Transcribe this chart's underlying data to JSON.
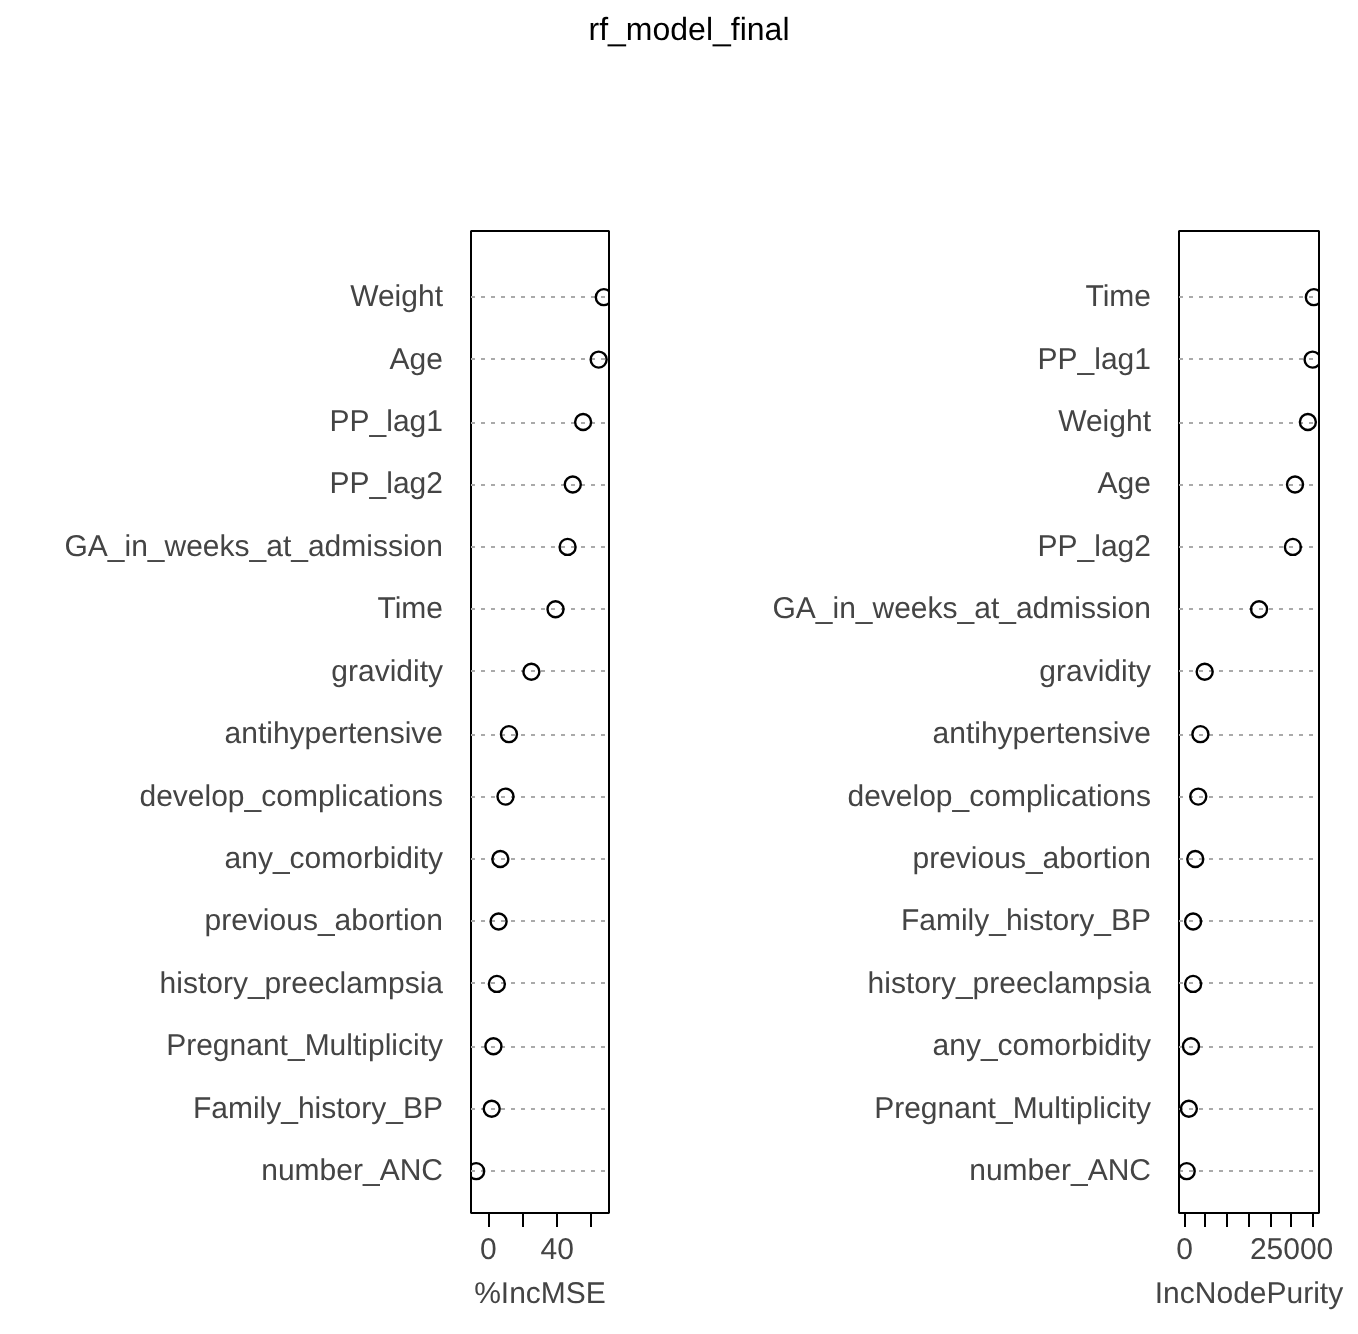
{
  "chart_data": [
    {
      "type": "scatter",
      "title": "rf_model_final",
      "orientation": "horizontal",
      "xlabel": "%IncMSE",
      "categories": [
        "Weight",
        "Age",
        "PP_lag1",
        "PP_lag2",
        "GA_in_weeks_at_admission",
        "Time",
        "gravidity",
        "antihypertensive",
        "develop_complications",
        "any_comorbidity",
        "previous_abortion",
        "history_preeclampsia",
        "Pregnant_Multiplicity",
        "Family_history_BP",
        "number_ANC"
      ],
      "values": [
        67,
        64,
        55,
        49,
        46,
        39,
        25,
        12,
        10,
        7,
        6,
        5,
        3,
        2,
        -7
      ],
      "color": "#000000",
      "marker": "circle",
      "grid": "y",
      "xlim": [
        -10,
        70
      ],
      "xticks": [
        0,
        {
          "value": 20,
          "label": null
        },
        40,
        {
          "value": 60,
          "label": null
        }
      ]
    },
    {
      "type": "scatter",
      "orientation": "horizontal",
      "xlabel": "IncNodePurity",
      "categories": [
        "Time",
        "PP_lag1",
        "Weight",
        "Age",
        "PP_lag2",
        "GA_in_weeks_at_admission",
        "gravidity",
        "antihypertensive",
        "develop_complications",
        "previous_abortion",
        "Family_history_BP",
        "history_preeclampsia",
        "any_comorbidity",
        "Pregnant_Multiplicity",
        "number_ANC"
      ],
      "values": [
        30200,
        29900,
        28800,
        25800,
        25300,
        17400,
        4700,
        3700,
        3200,
        2500,
        2000,
        2000,
        1500,
        1000,
        500
      ],
      "color": "#000000",
      "marker": "circle",
      "grid": "y",
      "xlim": [
        -1300,
        31400
      ],
      "xticks": [
        0,
        {
          "value": 5000,
          "label": null
        },
        {
          "value": 10000,
          "label": null
        },
        {
          "value": 15000,
          "label": null
        },
        {
          "value": 20000,
          "label": null
        },
        25000,
        {
          "value": 30000,
          "label": null
        }
      ]
    }
  ]
}
